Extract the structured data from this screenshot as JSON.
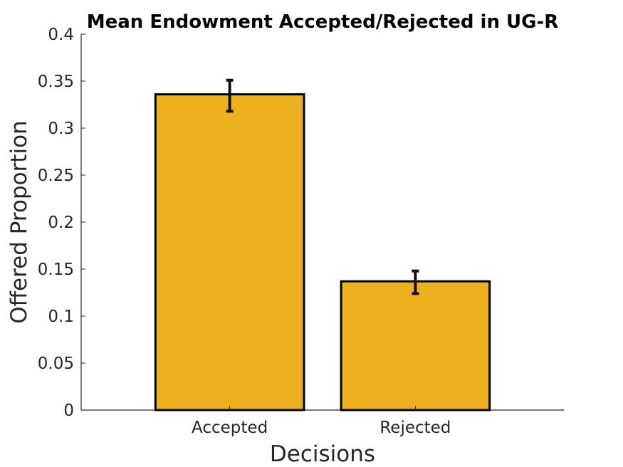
{
  "chart_data": {
    "type": "bar",
    "title": "Mean Endowment Accepted/Rejected in UG-R",
    "xlabel": "Decisions",
    "ylabel": "Offered Proportion",
    "categories": [
      "Accepted",
      "Rejected"
    ],
    "values": [
      0.336,
      0.137
    ],
    "error_low": [
      0.318,
      0.124
    ],
    "error_high": [
      0.351,
      0.148
    ],
    "ylim": [
      0,
      0.4
    ],
    "yticks": [
      "0",
      "0.05",
      "0.1",
      "0.15",
      "0.2",
      "0.25",
      "0.3",
      "0.35",
      "0.4"
    ],
    "bar_color": "#EDB120",
    "edge_color": "#000000",
    "grid": false
  }
}
